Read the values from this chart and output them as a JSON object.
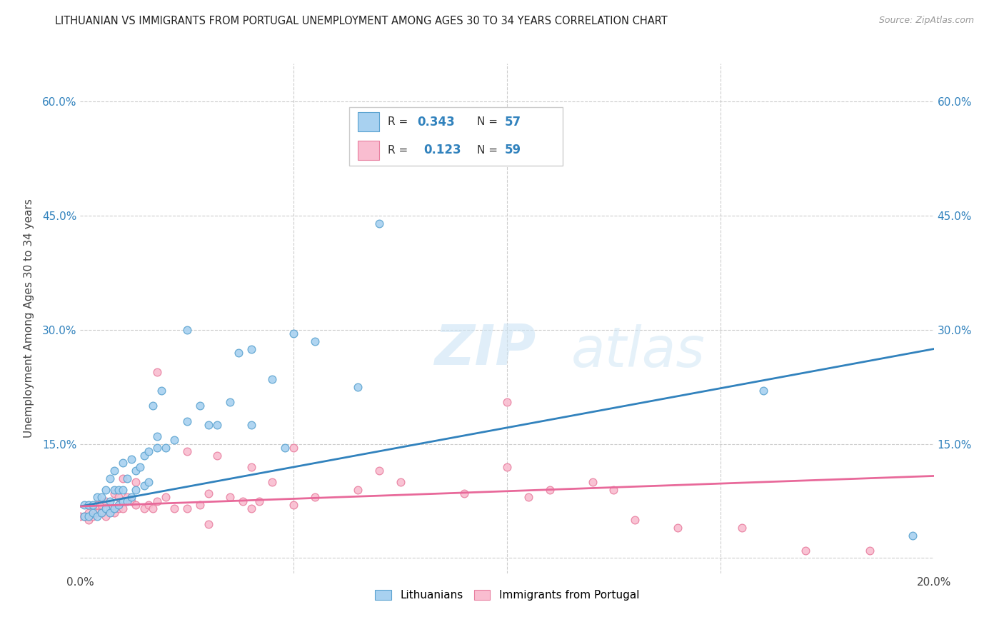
{
  "title": "LITHUANIAN VS IMMIGRANTS FROM PORTUGAL UNEMPLOYMENT AMONG AGES 30 TO 34 YEARS CORRELATION CHART",
  "source": "Source: ZipAtlas.com",
  "ylabel": "Unemployment Among Ages 30 to 34 years",
  "xlim": [
    0.0,
    0.2
  ],
  "ylim": [
    -0.02,
    0.65
  ],
  "xticks": [
    0.0,
    0.05,
    0.1,
    0.15,
    0.2
  ],
  "xticklabels": [
    "0.0%",
    "",
    "",
    "",
    "20.0%"
  ],
  "yticks": [
    0.0,
    0.15,
    0.3,
    0.45,
    0.6
  ],
  "yticklabels": [
    "",
    "15.0%",
    "30.0%",
    "45.0%",
    "60.0%"
  ],
  "background_color": "#ffffff",
  "watermark_zip": "ZIP",
  "watermark_atlas": "atlas",
  "legend_line1": "R = 0.343   N = 57",
  "legend_line2": "R =  0.123   N = 59",
  "color_blue_fill": "#a8d1f0",
  "color_blue_edge": "#5ba3d0",
  "color_pink_fill": "#f9bdd0",
  "color_pink_edge": "#e87fa0",
  "color_trendblue": "#3182bd",
  "color_trendpink": "#e8699a",
  "trendline1_x": [
    0.0,
    0.2
  ],
  "trendline1_y": [
    0.068,
    0.275
  ],
  "trendline2_x": [
    0.0,
    0.2
  ],
  "trendline2_y": [
    0.068,
    0.108
  ],
  "scatter_blue_x": [
    0.001,
    0.001,
    0.002,
    0.002,
    0.003,
    0.003,
    0.004,
    0.004,
    0.005,
    0.005,
    0.006,
    0.006,
    0.007,
    0.007,
    0.007,
    0.008,
    0.008,
    0.008,
    0.009,
    0.009,
    0.01,
    0.01,
    0.01,
    0.011,
    0.011,
    0.012,
    0.012,
    0.013,
    0.013,
    0.014,
    0.015,
    0.015,
    0.016,
    0.016,
    0.017,
    0.018,
    0.018,
    0.019,
    0.02,
    0.022,
    0.025,
    0.025,
    0.028,
    0.03,
    0.032,
    0.035,
    0.037,
    0.04,
    0.04,
    0.045,
    0.048,
    0.05,
    0.055,
    0.065,
    0.07,
    0.16,
    0.195
  ],
  "scatter_blue_y": [
    0.055,
    0.07,
    0.055,
    0.07,
    0.06,
    0.07,
    0.055,
    0.08,
    0.06,
    0.08,
    0.065,
    0.09,
    0.06,
    0.075,
    0.105,
    0.065,
    0.09,
    0.115,
    0.07,
    0.09,
    0.075,
    0.09,
    0.125,
    0.075,
    0.105,
    0.08,
    0.13,
    0.09,
    0.115,
    0.12,
    0.095,
    0.135,
    0.1,
    0.14,
    0.2,
    0.145,
    0.16,
    0.22,
    0.145,
    0.155,
    0.18,
    0.3,
    0.2,
    0.175,
    0.175,
    0.205,
    0.27,
    0.175,
    0.275,
    0.235,
    0.145,
    0.295,
    0.285,
    0.225,
    0.44,
    0.22,
    0.03
  ],
  "scatter_pink_x": [
    0.0,
    0.001,
    0.002,
    0.002,
    0.003,
    0.004,
    0.004,
    0.005,
    0.005,
    0.006,
    0.006,
    0.007,
    0.008,
    0.008,
    0.009,
    0.009,
    0.01,
    0.01,
    0.011,
    0.012,
    0.013,
    0.013,
    0.015,
    0.016,
    0.017,
    0.018,
    0.018,
    0.02,
    0.022,
    0.025,
    0.025,
    0.028,
    0.03,
    0.03,
    0.032,
    0.035,
    0.038,
    0.04,
    0.04,
    0.042,
    0.045,
    0.05,
    0.05,
    0.055,
    0.065,
    0.07,
    0.075,
    0.09,
    0.1,
    0.1,
    0.105,
    0.11,
    0.12,
    0.125,
    0.13,
    0.14,
    0.155,
    0.17,
    0.185
  ],
  "scatter_pink_y": [
    0.055,
    0.055,
    0.05,
    0.06,
    0.055,
    0.06,
    0.07,
    0.06,
    0.07,
    0.055,
    0.075,
    0.065,
    0.06,
    0.085,
    0.065,
    0.08,
    0.065,
    0.105,
    0.08,
    0.075,
    0.07,
    0.1,
    0.065,
    0.07,
    0.065,
    0.075,
    0.245,
    0.08,
    0.065,
    0.065,
    0.14,
    0.07,
    0.045,
    0.085,
    0.135,
    0.08,
    0.075,
    0.065,
    0.12,
    0.075,
    0.1,
    0.07,
    0.145,
    0.08,
    0.09,
    0.115,
    0.1,
    0.085,
    0.12,
    0.205,
    0.08,
    0.09,
    0.1,
    0.09,
    0.05,
    0.04,
    0.04,
    0.01,
    0.01
  ]
}
